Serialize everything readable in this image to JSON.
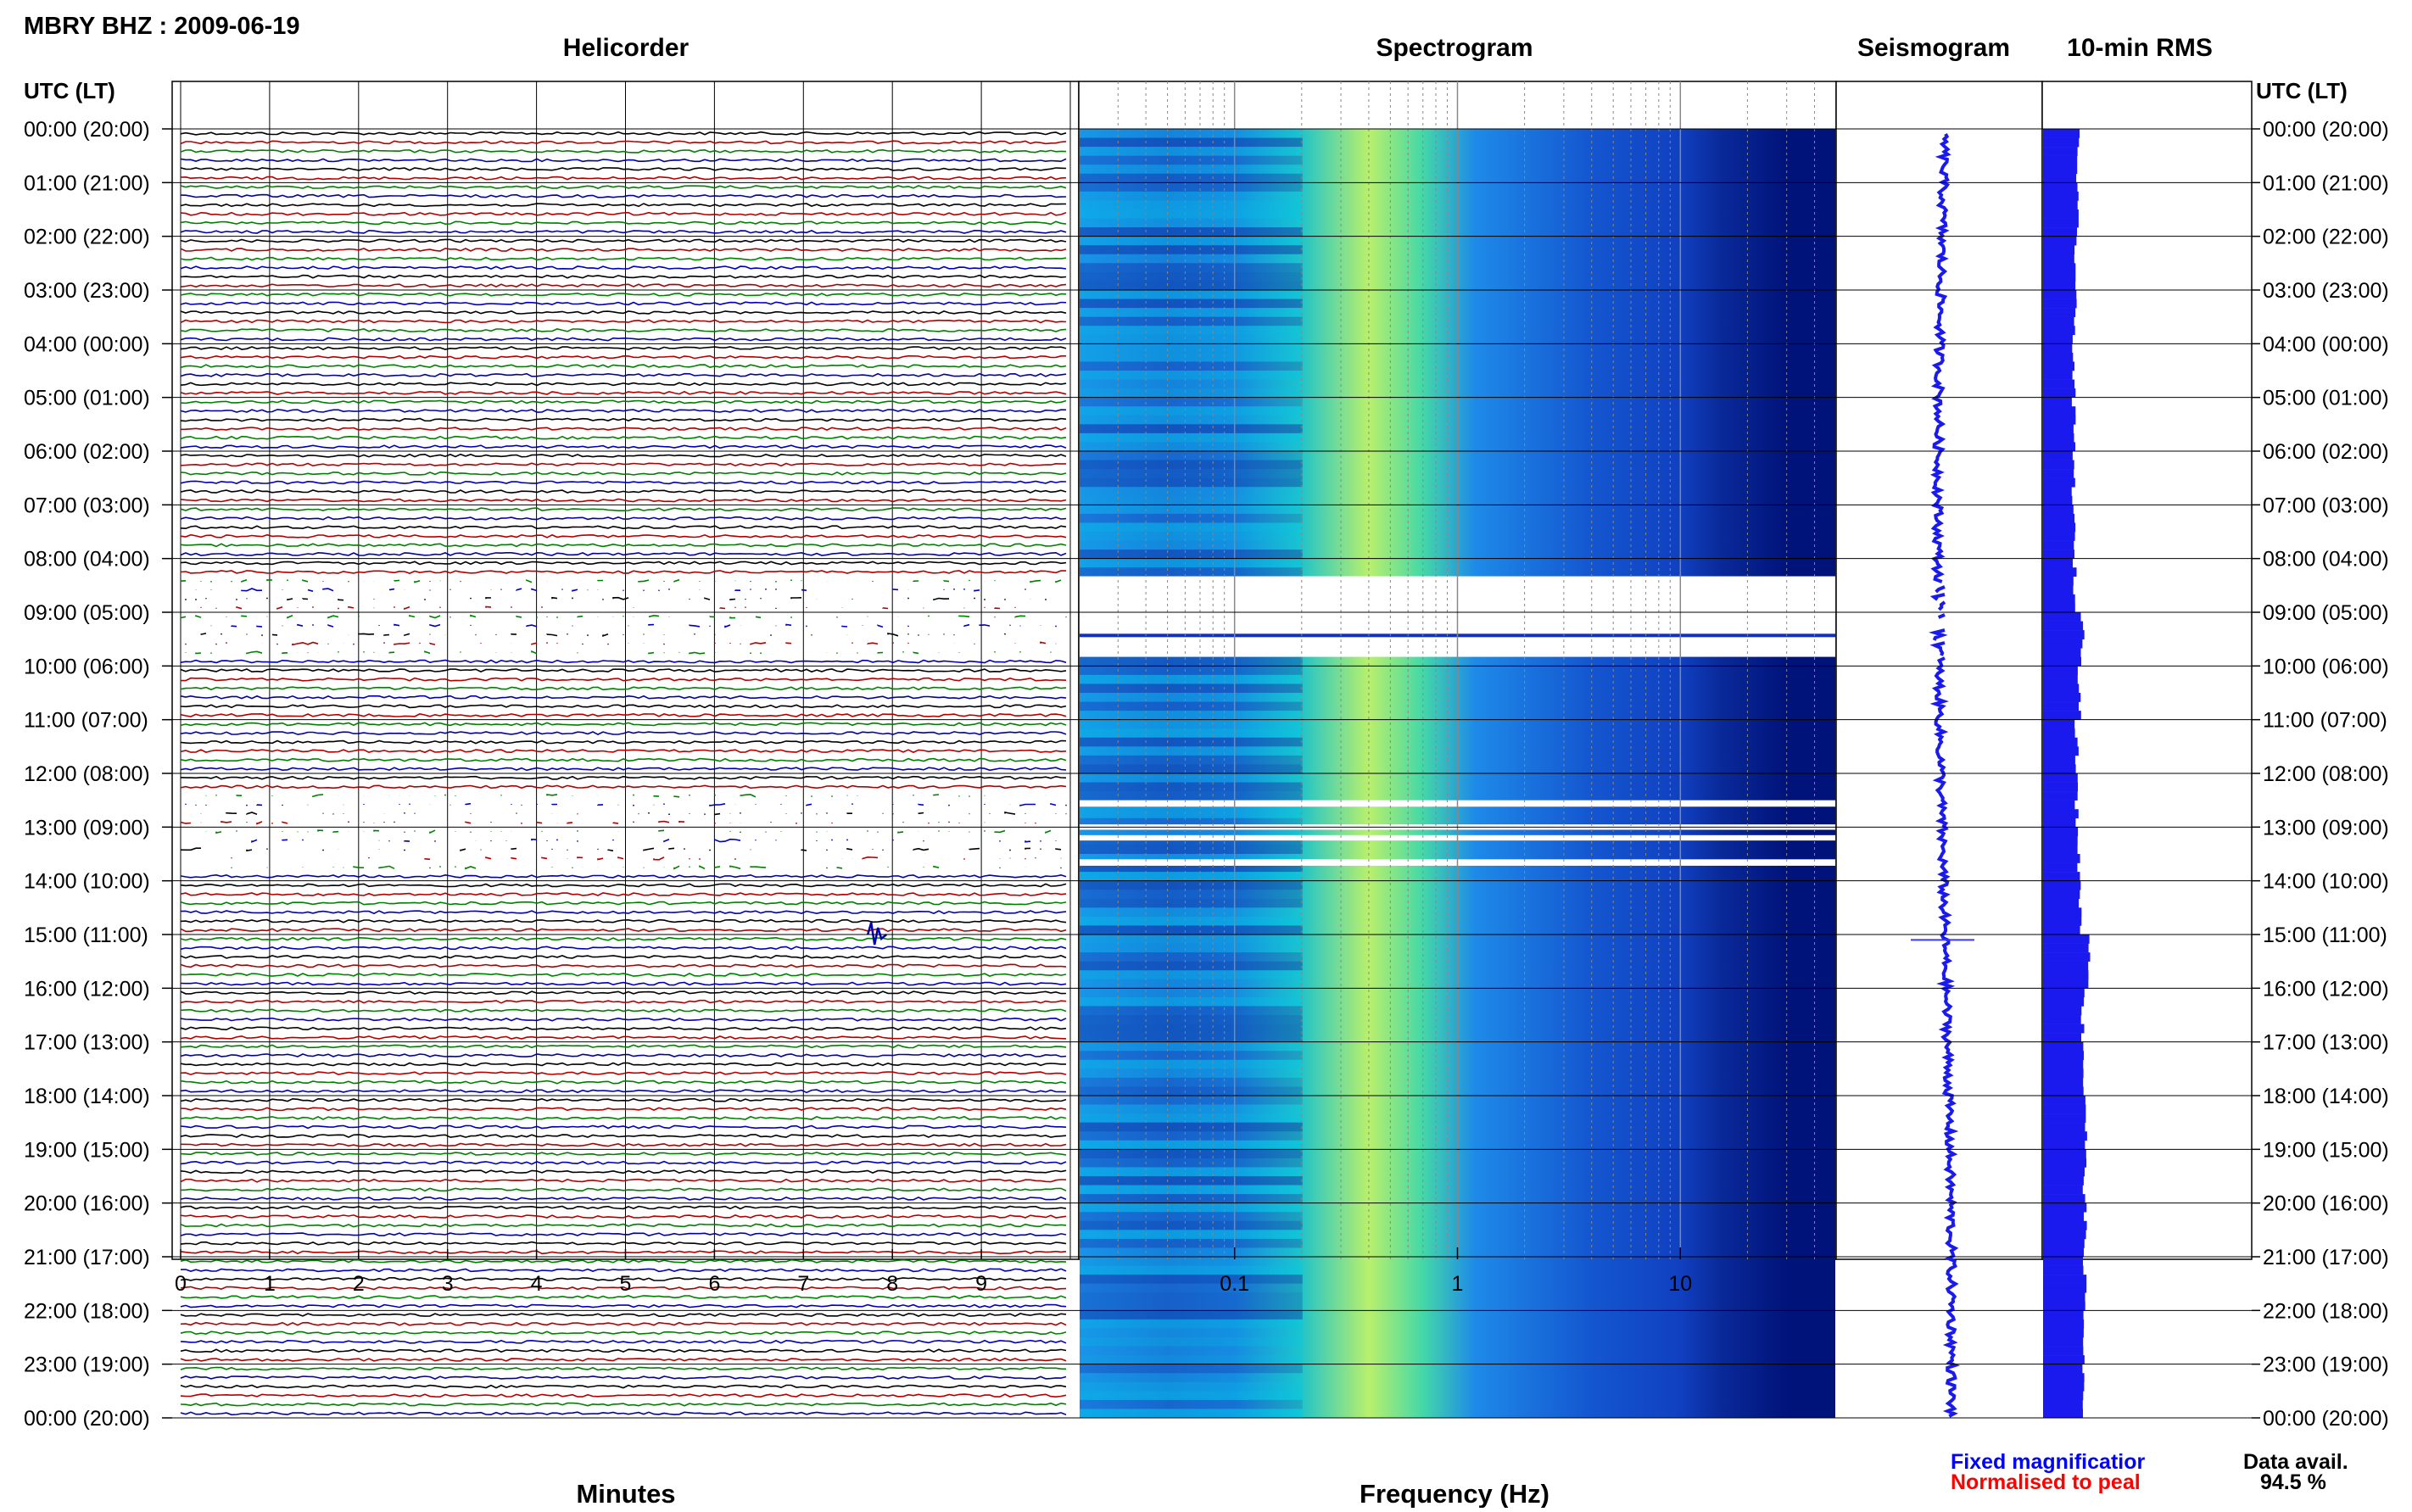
{
  "header": {
    "station": "MBRY BHZ : 2009-06-19",
    "time_label_left": "UTC (LT)",
    "time_label_right": "UTC (LT)"
  },
  "panels": {
    "helicorder": "Helicorder",
    "spectrogram": "Spectrogram",
    "seismogram": "Seismogram",
    "rms": "10-min RMS"
  },
  "colors": {
    "trace_black": "#000000",
    "trace_red": "#b00000",
    "trace_green": "#008000",
    "trace_blue": "#0000b0",
    "spec_low": "#00137a",
    "spec_mid": "#1877e0",
    "spec_high": "#b8f26a",
    "rms_bar": "#1a1aee"
  },
  "legend": {
    "fixed": "Fixed magnificatior",
    "normalised": "Normalised to peal",
    "fixed_color": "#0000ff",
    "normalised_color": "#ff0000"
  },
  "availability": {
    "label": "Data avail.",
    "value": "94.5 %"
  },
  "chart_data": [
    {
      "type": "line",
      "panel": "helicorder",
      "xlabel": "Minutes",
      "x_ticks": [
        "0",
        "1",
        "2",
        "3",
        "4",
        "5",
        "6",
        "7",
        "8",
        "9"
      ],
      "xlim": [
        0,
        10
      ],
      "y_ticks_left": [
        "00:00 (20:00)",
        "01:00 (21:00)",
        "02:00 (22:00)",
        "03:00 (23:00)",
        "04:00 (00:00)",
        "05:00 (01:00)",
        "06:00 (02:00)",
        "07:00 (03:00)",
        "08:00 (04:00)",
        "09:00 (05:00)",
        "10:00 (06:00)",
        "11:00 (07:00)",
        "12:00 (08:00)",
        "13:00 (09:00)",
        "14:00 (10:00)",
        "15:00 (11:00)",
        "16:00 (12:00)",
        "17:00 (13:00)",
        "18:00 (14:00)",
        "19:00 (15:00)",
        "20:00 (16:00)",
        "21:00 (17:00)",
        "22:00 (18:00)",
        "23:00 (19:00)",
        "00:00 (20:00)"
      ],
      "gaps_hours": [
        [
          8.33,
          9.83
        ],
        [
          12.33,
          13.67
        ]
      ],
      "event_at": {
        "hour": 15.0,
        "minute": 7.8
      }
    },
    {
      "type": "heatmap",
      "panel": "spectrogram",
      "xlabel": "Frequency (Hz)",
      "x_scale": "log",
      "xlim": [
        0.02,
        50
      ],
      "x_ticks": [
        "0.1",
        "1",
        "10"
      ],
      "peak_frequency_hz": 0.4,
      "gap_bands_hours": [
        [
          8.33,
          9.83
        ],
        [
          12.5,
          12.62
        ],
        [
          12.95,
          13.05
        ],
        [
          13.15,
          13.25
        ],
        [
          13.6,
          13.72
        ]
      ]
    },
    {
      "type": "line",
      "panel": "seismogram",
      "event_at_hour": 15.1
    },
    {
      "type": "bar",
      "panel": "rms",
      "orientation": "horizontal",
      "bin_minutes": 10,
      "y_ticks_right": [
        "00:00 (20:00)",
        "01:00 (21:00)",
        "02:00 (22:00)",
        "03:00 (23:00)",
        "04:00 (00:00)",
        "05:00 (01:00)",
        "06:00 (02:00)",
        "07:00 (03:00)",
        "08:00 (04:00)",
        "09:00 (05:00)",
        "10:00 (06:00)",
        "11:00 (07:00)",
        "12:00 (08:00)",
        "13:00 (09:00)",
        "14:00 (10:00)",
        "15:00 (11:00)",
        "16:00 (12:00)",
        "17:00 (13:00)",
        "18:00 (14:00)",
        "19:00 (15:00)",
        "20:00 (16:00)",
        "21:00 (17:00)",
        "22:00 (18:00)",
        "23:00 (19:00)",
        "00:00 (20:00)"
      ],
      "relative_level_by_hour": [
        0.68,
        0.66,
        0.64,
        0.62,
        0.6,
        0.6,
        0.6,
        0.6,
        0.62,
        0.78,
        0.72,
        0.66,
        0.66,
        0.7,
        0.74,
        0.92,
        0.78,
        0.8,
        0.84,
        0.82,
        0.82,
        0.82,
        0.8,
        0.78
      ]
    }
  ]
}
